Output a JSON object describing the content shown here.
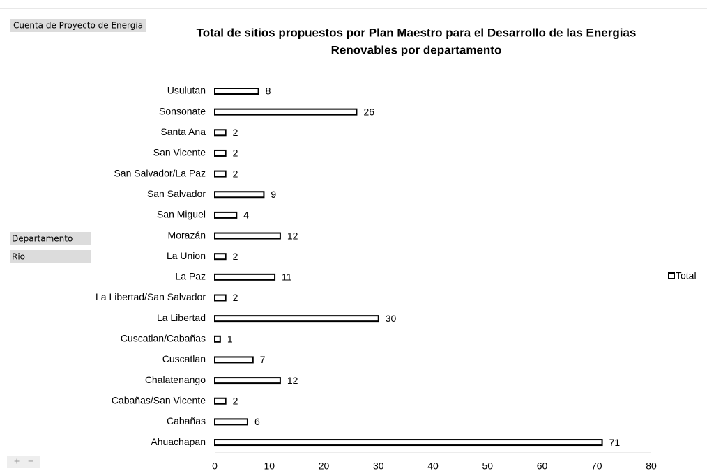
{
  "chart_data": {
    "type": "bar",
    "orientation": "horizontal",
    "title": "Total de sitios propuestos por Plan Maestro para el Desarrollo de las Energias Renovables por departamento",
    "filter_button": "Cuenta de Proyecto de Energia",
    "row_fields": [
      "Departamento",
      "Rio"
    ],
    "zoom_controls": [
      "+",
      "−"
    ],
    "categories": [
      "Usulutan",
      "Sonsonate",
      "Santa Ana",
      "San Vicente",
      "San Salvador/La Paz",
      "San Salvador",
      "San Miguel",
      "Morazán",
      "La Union",
      "La Paz",
      "La Libertad/San Salvador",
      "La Libertad",
      "Cuscatlan/Cabañas",
      "Cuscatlan",
      "Chalatenango",
      "Cabañas/San Vicente",
      "Cabañas",
      "Ahuachapan"
    ],
    "series": [
      {
        "name": "Total",
        "color": "#ffffff",
        "values": [
          8,
          26,
          2,
          2,
          2,
          9,
          4,
          12,
          2,
          11,
          2,
          30,
          1,
          7,
          12,
          2,
          6,
          71
        ]
      }
    ],
    "xlim": [
      0,
      80
    ],
    "xticks": [
      0,
      10,
      20,
      30,
      40,
      50,
      60,
      70,
      80
    ],
    "grid": false,
    "legend": "right",
    "data_labels": true
  }
}
